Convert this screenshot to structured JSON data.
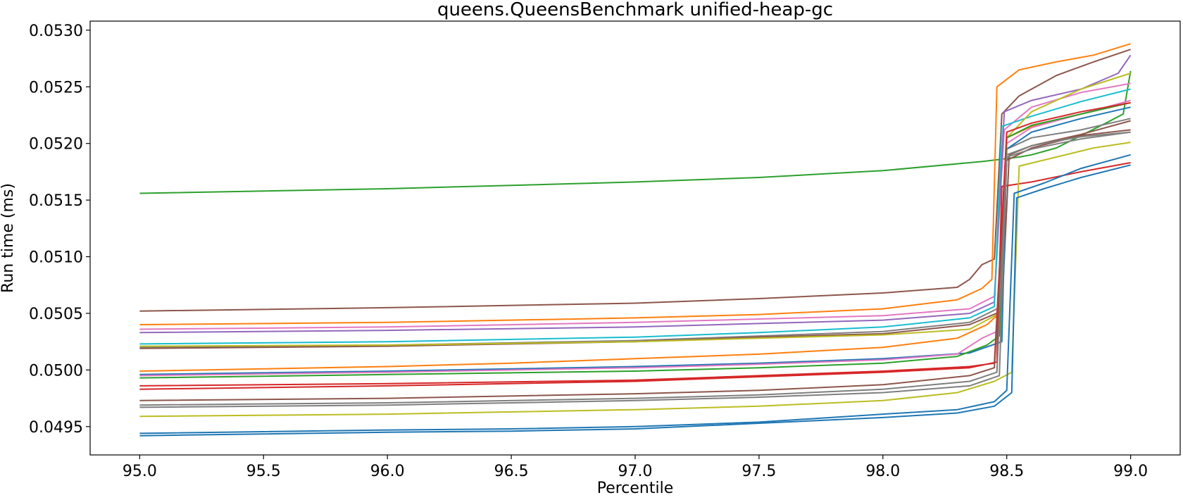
{
  "chart_data": {
    "type": "line",
    "title": "queens.QueensBenchmark unified-heap-gc",
    "xlabel": "Percentile",
    "ylabel": "Run time (ms)",
    "xlim": [
      94.8,
      99.2
    ],
    "ylim": [
      0.04925,
      0.05308
    ],
    "xticks": [
      95.0,
      95.5,
      96.0,
      96.5,
      97.0,
      97.5,
      98.0,
      98.5,
      99.0
    ],
    "xtick_labels": [
      "95.0",
      "95.5",
      "96.0",
      "96.5",
      "97.0",
      "97.5",
      "98.0",
      "98.5",
      "99.0"
    ],
    "yticks": [
      0.0495,
      0.05,
      0.0505,
      0.051,
      0.0515,
      0.052,
      0.0525,
      0.053
    ],
    "ytick_labels": [
      "0.0495",
      "0.0500",
      "0.0505",
      "0.0510",
      "0.0515",
      "0.0520",
      "0.0525",
      "0.0530"
    ],
    "grid": false,
    "legend": "none",
    "series": [
      {
        "color": "#2ca02c",
        "points": [
          [
            95.0,
            0.05156
          ],
          [
            96.0,
            0.0516
          ],
          [
            96.5,
            0.05163
          ],
          [
            97.0,
            0.05166
          ],
          [
            97.5,
            0.0517
          ],
          [
            98.0,
            0.05176
          ],
          [
            98.4,
            0.05184
          ],
          [
            98.55,
            0.05188
          ],
          [
            98.6,
            0.0519
          ],
          [
            98.7,
            0.05196
          ],
          [
            98.9,
            0.05218
          ],
          [
            98.97,
            0.05226
          ],
          [
            99.0,
            0.05264
          ]
        ]
      },
      {
        "color": "#8c564b",
        "points": [
          [
            95.0,
            0.05052
          ],
          [
            96.0,
            0.05055
          ],
          [
            97.0,
            0.05059
          ],
          [
            97.5,
            0.05063
          ],
          [
            98.0,
            0.05068
          ],
          [
            98.3,
            0.05073
          ],
          [
            98.35,
            0.0508
          ],
          [
            98.4,
            0.05093
          ],
          [
            98.45,
            0.05098
          ],
          [
            98.48,
            0.05226
          ],
          [
            98.55,
            0.05242
          ],
          [
            98.7,
            0.0526
          ],
          [
            98.85,
            0.05272
          ],
          [
            99.0,
            0.05283
          ]
        ]
      },
      {
        "color": "#ff7f0e",
        "points": [
          [
            95.0,
            0.0504
          ],
          [
            96.0,
            0.05042
          ],
          [
            97.0,
            0.05046
          ],
          [
            97.5,
            0.05049
          ],
          [
            98.0,
            0.05054
          ],
          [
            98.3,
            0.05062
          ],
          [
            98.4,
            0.05072
          ],
          [
            98.44,
            0.0508
          ],
          [
            98.46,
            0.0525
          ],
          [
            98.55,
            0.05265
          ],
          [
            98.7,
            0.05272
          ],
          [
            98.85,
            0.05278
          ],
          [
            99.0,
            0.05288
          ]
        ]
      },
      {
        "color": "#e377c2",
        "points": [
          [
            95.0,
            0.05036
          ],
          [
            96.0,
            0.05038
          ],
          [
            97.0,
            0.05042
          ],
          [
            97.5,
            0.05045
          ],
          [
            98.0,
            0.05048
          ],
          [
            98.35,
            0.05054
          ],
          [
            98.45,
            0.05065
          ],
          [
            98.49,
            0.05212
          ],
          [
            98.6,
            0.05232
          ],
          [
            98.8,
            0.05245
          ],
          [
            99.0,
            0.05253
          ]
        ]
      },
      {
        "color": "#9467bd",
        "points": [
          [
            95.0,
            0.05033
          ],
          [
            96.0,
            0.05035
          ],
          [
            97.0,
            0.05038
          ],
          [
            97.5,
            0.05041
          ],
          [
            98.0,
            0.05044
          ],
          [
            98.35,
            0.0505
          ],
          [
            98.45,
            0.0506
          ],
          [
            98.49,
            0.05228
          ],
          [
            98.6,
            0.05238
          ],
          [
            98.8,
            0.05248
          ],
          [
            98.95,
            0.05262
          ],
          [
            99.0,
            0.05278
          ]
        ]
      },
      {
        "color": "#17becf",
        "points": [
          [
            95.0,
            0.05023
          ],
          [
            96.0,
            0.05025
          ],
          [
            97.0,
            0.05029
          ],
          [
            97.5,
            0.05033
          ],
          [
            98.0,
            0.05038
          ],
          [
            98.35,
            0.05046
          ],
          [
            98.45,
            0.05056
          ],
          [
            98.48,
            0.05215
          ],
          [
            98.6,
            0.05224
          ],
          [
            98.8,
            0.05237
          ],
          [
            99.0,
            0.05248
          ]
        ]
      },
      {
        "color": "#7f7f7f",
        "points": [
          [
            95.0,
            0.0502
          ],
          [
            96.0,
            0.05022
          ],
          [
            97.0,
            0.05026
          ],
          [
            97.5,
            0.0503
          ],
          [
            98.0,
            0.05034
          ],
          [
            98.35,
            0.05042
          ],
          [
            98.47,
            0.05055
          ],
          [
            98.5,
            0.05195
          ],
          [
            98.6,
            0.05205
          ],
          [
            98.8,
            0.05212
          ],
          [
            99.0,
            0.05222
          ]
        ]
      },
      {
        "color": "#8c564b",
        "points": [
          [
            95.0,
            0.05019
          ],
          [
            96.0,
            0.05021
          ],
          [
            97.0,
            0.05025
          ],
          [
            97.5,
            0.05029
          ],
          [
            98.0,
            0.05032
          ],
          [
            98.35,
            0.0504
          ],
          [
            98.48,
            0.05052
          ],
          [
            98.51,
            0.0519
          ],
          [
            98.6,
            0.05198
          ],
          [
            98.8,
            0.05208
          ],
          [
            99.0,
            0.0522
          ]
        ]
      },
      {
        "color": "#bcbd22",
        "points": [
          [
            95.0,
            0.05021
          ],
          [
            96.0,
            0.05022
          ],
          [
            97.0,
            0.05025
          ],
          [
            97.5,
            0.05028
          ],
          [
            98.0,
            0.05031
          ],
          [
            98.35,
            0.05036
          ],
          [
            98.47,
            0.0505
          ],
          [
            98.5,
            0.05205
          ],
          [
            98.6,
            0.05228
          ],
          [
            98.8,
            0.05248
          ],
          [
            99.0,
            0.05262
          ]
        ]
      },
      {
        "color": "#ff7f0e",
        "points": [
          [
            95.0,
            0.04999
          ],
          [
            96.0,
            0.05003
          ],
          [
            96.5,
            0.05006
          ],
          [
            97.0,
            0.0501
          ],
          [
            97.5,
            0.05014
          ],
          [
            98.0,
            0.0502
          ],
          [
            98.3,
            0.05028
          ],
          [
            98.42,
            0.0504
          ],
          [
            98.47,
            0.0505
          ],
          [
            98.5,
            0.05205
          ],
          [
            98.6,
            0.05215
          ],
          [
            98.8,
            0.05226
          ],
          [
            99.0,
            0.05236
          ]
        ]
      },
      {
        "color": "#1f77b4",
        "points": [
          [
            95.0,
            0.04996
          ],
          [
            96.0,
            0.04999
          ],
          [
            97.0,
            0.05003
          ],
          [
            97.5,
            0.05006
          ],
          [
            98.0,
            0.0501
          ],
          [
            98.35,
            0.05015
          ],
          [
            98.48,
            0.05025
          ],
          [
            98.5,
            0.05195
          ],
          [
            98.6,
            0.0521
          ],
          [
            98.8,
            0.05222
          ],
          [
            99.0,
            0.05232
          ]
        ]
      },
      {
        "color": "#e377c2",
        "points": [
          [
            95.0,
            0.04995
          ],
          [
            96.0,
            0.04998
          ],
          [
            97.0,
            0.05002
          ],
          [
            97.5,
            0.05005
          ],
          [
            98.0,
            0.05009
          ],
          [
            98.3,
            0.05014
          ],
          [
            98.4,
            0.05028
          ],
          [
            98.47,
            0.05035
          ],
          [
            98.5,
            0.052
          ],
          [
            98.6,
            0.05214
          ],
          [
            98.8,
            0.05226
          ],
          [
            99.0,
            0.05238
          ]
        ]
      },
      {
        "color": "#2ca02c",
        "points": [
          [
            95.0,
            0.04993
          ],
          [
            96.0,
            0.04996
          ],
          [
            97.0,
            0.04999
          ],
          [
            97.5,
            0.05002
          ],
          [
            98.0,
            0.05006
          ],
          [
            98.3,
            0.05012
          ],
          [
            98.42,
            0.05022
          ],
          [
            98.47,
            0.0503
          ],
          [
            98.5,
            0.05205
          ],
          [
            98.6,
            0.05216
          ],
          [
            98.8,
            0.05226
          ],
          [
            99.0,
            0.05236
          ]
        ]
      },
      {
        "color": "#d62728",
        "points": [
          [
            95.0,
            0.04986
          ],
          [
            96.0,
            0.04988
          ],
          [
            97.0,
            0.04991
          ],
          [
            97.5,
            0.04995
          ],
          [
            98.0,
            0.04999
          ],
          [
            98.35,
            0.05003
          ],
          [
            98.45,
            0.05006
          ],
          [
            98.5,
            0.0521
          ],
          [
            98.6,
            0.05218
          ],
          [
            98.8,
            0.05228
          ],
          [
            99.0,
            0.05236
          ]
        ]
      },
      {
        "color": "#d62728",
        "points": [
          [
            95.0,
            0.04983
          ],
          [
            96.0,
            0.04986
          ],
          [
            97.0,
            0.0499
          ],
          [
            97.5,
            0.04994
          ],
          [
            98.0,
            0.04998
          ],
          [
            98.35,
            0.05002
          ],
          [
            98.46,
            0.05007
          ],
          [
            98.48,
            0.05162
          ],
          [
            98.6,
            0.05166
          ],
          [
            98.8,
            0.05175
          ],
          [
            99.0,
            0.05183
          ]
        ]
      },
      {
        "color": "#8c564b",
        "points": [
          [
            95.0,
            0.04973
          ],
          [
            96.0,
            0.04975
          ],
          [
            97.0,
            0.04979
          ],
          [
            97.5,
            0.04982
          ],
          [
            98.0,
            0.04987
          ],
          [
            98.35,
            0.04995
          ],
          [
            98.45,
            0.05002
          ],
          [
            98.5,
            0.05185
          ],
          [
            98.6,
            0.05196
          ],
          [
            98.8,
            0.05207
          ],
          [
            99.0,
            0.05212
          ]
        ]
      },
      {
        "color": "#7f7f7f",
        "points": [
          [
            95.0,
            0.04969
          ],
          [
            96.0,
            0.04971
          ],
          [
            97.0,
            0.04975
          ],
          [
            97.5,
            0.04978
          ],
          [
            98.0,
            0.04983
          ],
          [
            98.35,
            0.0499
          ],
          [
            98.46,
            0.04998
          ],
          [
            98.5,
            0.0519
          ],
          [
            98.6,
            0.05198
          ],
          [
            98.8,
            0.05206
          ],
          [
            99.0,
            0.0521
          ]
        ]
      },
      {
        "color": "#7f7f7f",
        "points": [
          [
            95.0,
            0.04967
          ],
          [
            96.0,
            0.04969
          ],
          [
            97.0,
            0.04973
          ],
          [
            97.5,
            0.04976
          ],
          [
            98.0,
            0.0498
          ],
          [
            98.35,
            0.04986
          ],
          [
            98.47,
            0.04995
          ],
          [
            98.5,
            0.05188
          ],
          [
            98.6,
            0.05195
          ],
          [
            98.8,
            0.05204
          ],
          [
            99.0,
            0.0521
          ]
        ]
      },
      {
        "color": "#bcbd22",
        "points": [
          [
            95.0,
            0.04959
          ],
          [
            96.0,
            0.04961
          ],
          [
            97.0,
            0.04965
          ],
          [
            97.5,
            0.04968
          ],
          [
            98.0,
            0.04973
          ],
          [
            98.3,
            0.0498
          ],
          [
            98.45,
            0.0499
          ],
          [
            98.52,
            0.04998
          ],
          [
            98.55,
            0.0518
          ],
          [
            98.7,
            0.05188
          ],
          [
            98.85,
            0.05196
          ],
          [
            99.0,
            0.05201
          ]
        ]
      },
      {
        "color": "#1f77b4",
        "points": [
          [
            95.0,
            0.04944
          ],
          [
            96.0,
            0.04947
          ],
          [
            96.5,
            0.04948
          ],
          [
            97.0,
            0.0495
          ],
          [
            97.5,
            0.04954
          ],
          [
            98.0,
            0.04961
          ],
          [
            98.3,
            0.04965
          ],
          [
            98.45,
            0.04972
          ],
          [
            98.5,
            0.04982
          ],
          [
            98.53,
            0.05156
          ],
          [
            98.65,
            0.05165
          ],
          [
            98.8,
            0.05178
          ],
          [
            99.0,
            0.0519
          ]
        ]
      },
      {
        "color": "#1f77b4",
        "points": [
          [
            95.0,
            0.04942
          ],
          [
            96.0,
            0.04945
          ],
          [
            96.5,
            0.04946
          ],
          [
            97.0,
            0.04948
          ],
          [
            97.5,
            0.04953
          ],
          [
            98.0,
            0.04958
          ],
          [
            98.3,
            0.04962
          ],
          [
            98.45,
            0.04968
          ],
          [
            98.52,
            0.0498
          ],
          [
            98.54,
            0.05152
          ],
          [
            98.65,
            0.0516
          ],
          [
            98.8,
            0.0517
          ],
          [
            99.0,
            0.05181
          ]
        ]
      }
    ]
  }
}
